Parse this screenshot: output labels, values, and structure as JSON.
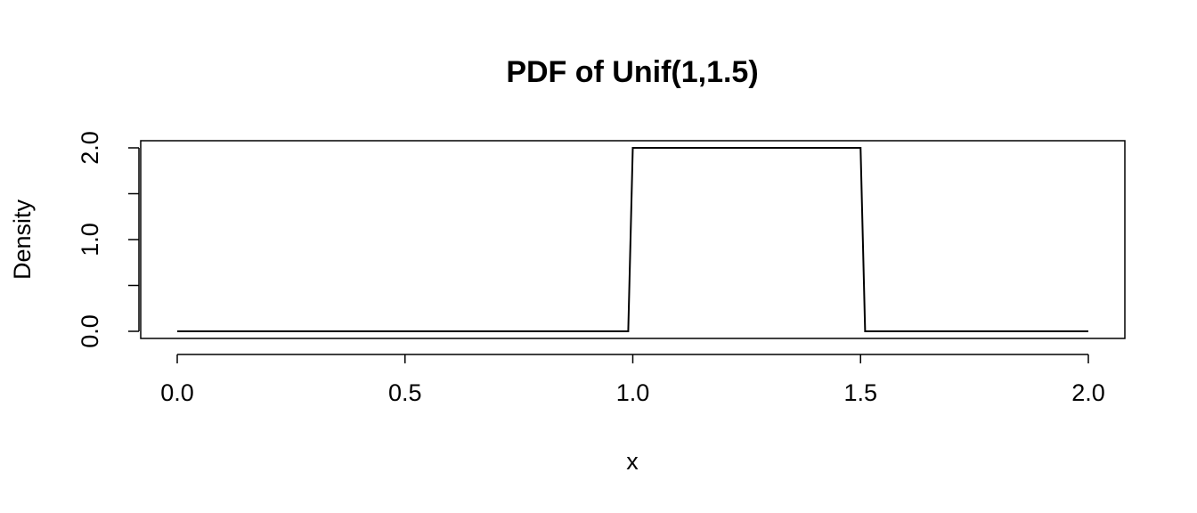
{
  "chart_data": {
    "type": "line",
    "title": "PDF of Unif(1,1.5)",
    "xlabel": "x",
    "ylabel": "Density",
    "xlim": [
      0,
      2
    ],
    "ylim": [
      0,
      2
    ],
    "x_ticks": [
      0.0,
      0.5,
      1.0,
      1.5,
      2.0
    ],
    "x_tick_labels": [
      "0.0",
      "0.5",
      "1.0",
      "1.5",
      "2.0"
    ],
    "y_ticks": [
      0.0,
      0.5,
      1.0,
      1.5,
      2.0
    ],
    "y_tick_labels": [
      "0.0",
      "",
      "1.0",
      "",
      "2.0"
    ],
    "grid": false,
    "legend": "none",
    "line_color": "#000000",
    "series": [
      {
        "x": [
          0.0,
          0.99,
          1.0,
          1.5,
          1.51,
          2.0
        ],
        "y": [
          0,
          0,
          2,
          2,
          0,
          0
        ]
      }
    ]
  }
}
